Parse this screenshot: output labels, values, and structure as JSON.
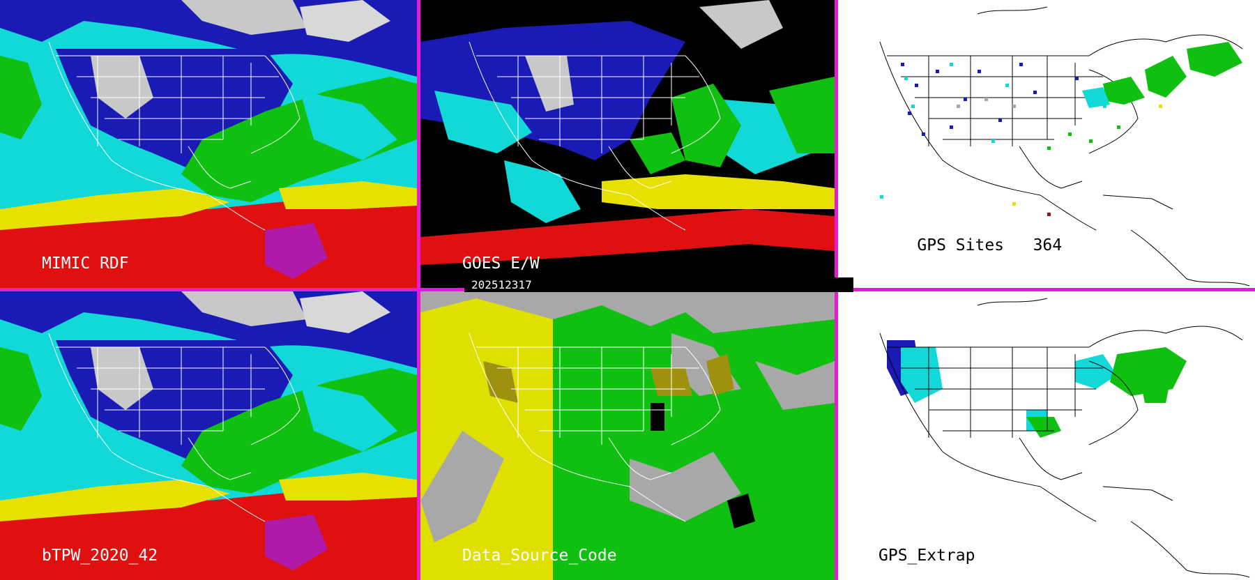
{
  "panels": {
    "mimic_rdf": {
      "label": "MIMIC RDF"
    },
    "goes_ew": {
      "label": "GOES E/W"
    },
    "gps_sites": {
      "label": "GPS Sites",
      "count": "364"
    },
    "btpw": {
      "label": "bTPW_2020_42"
    },
    "data_source_code": {
      "label": "Data_Source_Code"
    },
    "gps_extrap": {
      "label": "GPS_Extrap"
    }
  },
  "timestamp": "202512317",
  "colors": {
    "divider": "#e81ad6",
    "tpw_ramp": [
      "#c8c8c8",
      "#1a1ab4",
      "#00e0e0",
      "#10c010",
      "#e8e000",
      "#e01010",
      "#b01aa8"
    ],
    "source_codes": [
      "#a8a8a8",
      "#e0e000",
      "#10c010",
      "#a09010",
      "#000000"
    ]
  }
}
